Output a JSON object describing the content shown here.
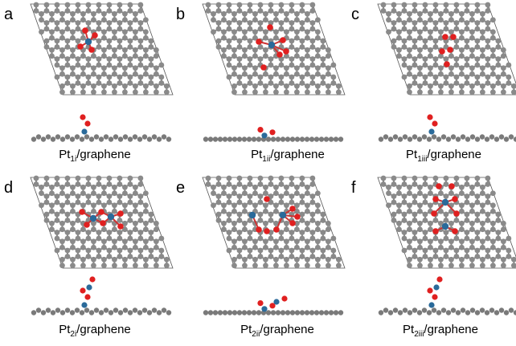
{
  "panels": [
    {
      "label": "a",
      "caption": {
        "base": "Pt",
        "sub": "1i",
        "rest": "/graphene"
      }
    },
    {
      "label": "b",
      "caption": {
        "base": "Pt",
        "sub": "1ii",
        "rest": "/graphene"
      }
    },
    {
      "label": "c",
      "caption": {
        "base": "Pt",
        "sub": "1iii",
        "rest": "/graphene"
      }
    },
    {
      "label": "d",
      "caption": {
        "base": "Pt",
        "sub": "2i",
        "rest": "/graphene"
      }
    },
    {
      "label": "e",
      "caption": {
        "base": "Pt",
        "sub": "2ii",
        "rest": "/graphene"
      }
    },
    {
      "label": "f",
      "caption": {
        "base": "Pt",
        "sub": "2iii",
        "rest": "/graphene"
      }
    }
  ]
}
